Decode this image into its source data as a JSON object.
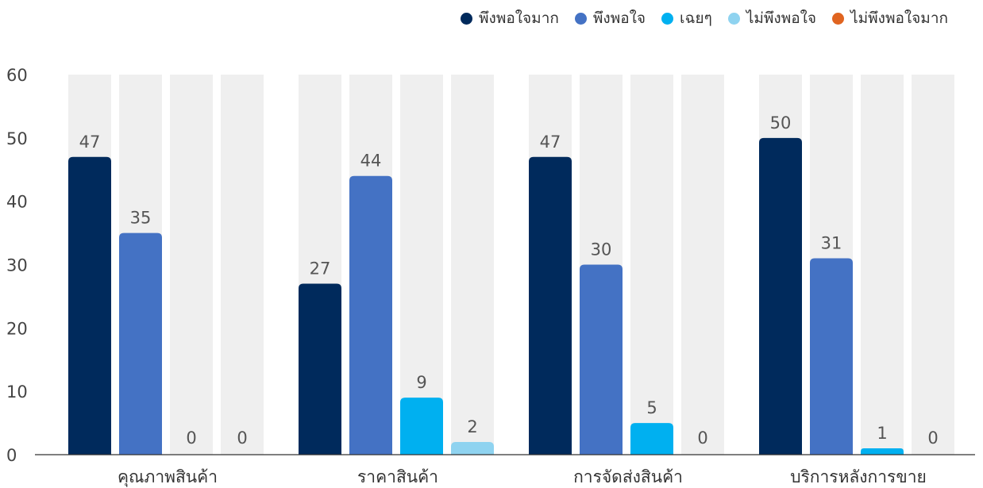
{
  "chart_data": {
    "type": "bar",
    "title": "",
    "xlabel": "",
    "ylabel": "",
    "ylim": [
      0,
      60
    ],
    "yticks": [
      0,
      10,
      20,
      30,
      40,
      50,
      60
    ],
    "legend_position": "top-right",
    "grid": false,
    "background_columns": true,
    "background_column_color": "#efefef",
    "categories": [
      "คุณภาพสินค้า",
      "ราคาสินค้า",
      "การจัดส่งสินค้า",
      "บริการหลังการขาย"
    ],
    "series": [
      {
        "name": "พึงพอใจมาก",
        "color": "#002a5c",
        "values": [
          47,
          27,
          47,
          50
        ]
      },
      {
        "name": "พึงพอใจ",
        "color": "#4472c4",
        "values": [
          35,
          44,
          30,
          31
        ]
      },
      {
        "name": "เฉยๆ",
        "color": "#00b0f0",
        "values": [
          0,
          9,
          5,
          1
        ]
      },
      {
        "name": "ไม่พึงพอใจ",
        "color": "#8fd3f0",
        "values": [
          0,
          2,
          0,
          0
        ]
      },
      {
        "name": "ไม่พึงพอใจมาก",
        "color": "#e06420",
        "values": [
          null,
          null,
          null,
          null
        ]
      }
    ],
    "data_labels": [
      [
        "47",
        "35",
        "0",
        "0"
      ],
      [
        "27",
        "44",
        "9",
        "2"
      ],
      [
        "47",
        "30",
        "5",
        "0"
      ],
      [
        "50",
        "31",
        "1",
        "0"
      ]
    ]
  }
}
